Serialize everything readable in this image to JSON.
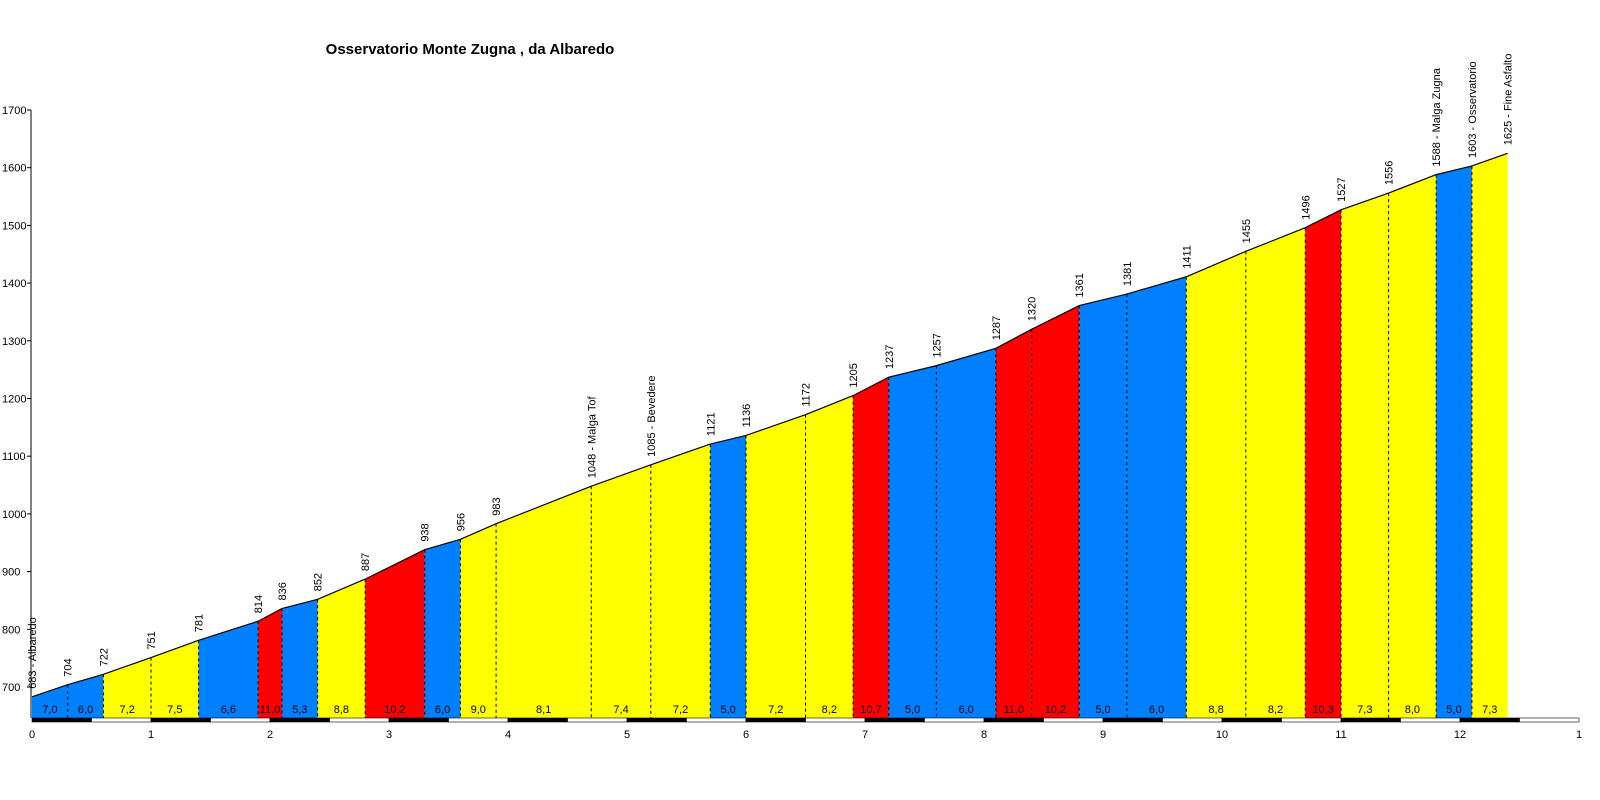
{
  "chart_data": {
    "type": "area",
    "title": "Osservatorio Monte Zugna , da Albaredo",
    "xlabel": "",
    "ylabel": "",
    "xlim": [
      0,
      13
    ],
    "ylim": [
      645,
      1700
    ],
    "x_ticks": [
      0,
      1,
      2,
      3,
      4,
      5,
      6,
      7,
      8,
      9,
      10,
      11,
      12,
      13
    ],
    "x_tick_labels": [
      "0",
      "1",
      "2",
      "3",
      "4",
      "5",
      "6",
      "7",
      "8",
      "9",
      "10",
      "11",
      "12",
      "1"
    ],
    "y_ticks": [
      700,
      800,
      900,
      1000,
      1100,
      1200,
      1300,
      1400,
      1500,
      1600,
      1700
    ],
    "grid": false,
    "colors": {
      "blue": "#0080ff",
      "yellow": "#ffff00",
      "red": "#ff0000",
      "outline": "#000000"
    },
    "points": [
      {
        "x": 0.0,
        "elev": 683,
        "label": "683 - Albaredo"
      },
      {
        "x": 0.3,
        "elev": 704,
        "label": "704"
      },
      {
        "x": 0.6,
        "elev": 722,
        "label": "722"
      },
      {
        "x": 1.0,
        "elev": 751,
        "label": "751"
      },
      {
        "x": 1.4,
        "elev": 781,
        "label": "781"
      },
      {
        "x": 1.9,
        "elev": 814,
        "label": "814"
      },
      {
        "x": 2.1,
        "elev": 836,
        "label": "836"
      },
      {
        "x": 2.4,
        "elev": 852,
        "label": "852"
      },
      {
        "x": 2.8,
        "elev": 887,
        "label": "887"
      },
      {
        "x": 3.3,
        "elev": 938,
        "label": "938"
      },
      {
        "x": 3.6,
        "elev": 956,
        "label": "956"
      },
      {
        "x": 3.9,
        "elev": 983,
        "label": "983"
      },
      {
        "x": 4.7,
        "elev": 1048,
        "label": "1048 - Malga Tof"
      },
      {
        "x": 5.2,
        "elev": 1085,
        "label": "1085 - Bevedere"
      },
      {
        "x": 5.7,
        "elev": 1121,
        "label": "1121"
      },
      {
        "x": 6.0,
        "elev": 1136,
        "label": "1136"
      },
      {
        "x": 6.5,
        "elev": 1172,
        "label": "1172"
      },
      {
        "x": 6.9,
        "elev": 1205,
        "label": "1205"
      },
      {
        "x": 7.2,
        "elev": 1237,
        "label": "1237"
      },
      {
        "x": 7.6,
        "elev": 1257,
        "label": "1257"
      },
      {
        "x": 8.1,
        "elev": 1287,
        "label": "1287"
      },
      {
        "x": 8.4,
        "elev": 1320,
        "label": "1320"
      },
      {
        "x": 8.8,
        "elev": 1361,
        "label": "1361"
      },
      {
        "x": 9.2,
        "elev": 1381,
        "label": "1381"
      },
      {
        "x": 9.7,
        "elev": 1411,
        "label": "1411"
      },
      {
        "x": 10.2,
        "elev": 1455,
        "label": "1455"
      },
      {
        "x": 10.7,
        "elev": 1496,
        "label": "1496"
      },
      {
        "x": 11.0,
        "elev": 1527,
        "label": "1527"
      },
      {
        "x": 11.4,
        "elev": 1556,
        "label": "1556"
      },
      {
        "x": 11.8,
        "elev": 1588,
        "label": "1588 - Malga Zugna"
      },
      {
        "x": 12.1,
        "elev": 1603,
        "label": "1603 - Osservatorio"
      },
      {
        "x": 12.4,
        "elev": 1625,
        "label": "1625 - Fine Asfalto"
      }
    ],
    "segments": [
      {
        "grade": "7,0",
        "color": "blue"
      },
      {
        "grade": "6,0",
        "color": "blue"
      },
      {
        "grade": "7,2",
        "color": "yellow"
      },
      {
        "grade": "7,5",
        "color": "yellow"
      },
      {
        "grade": "6,6",
        "color": "blue"
      },
      {
        "grade": "11,0",
        "color": "red"
      },
      {
        "grade": "5,3",
        "color": "blue"
      },
      {
        "grade": "8,8",
        "color": "yellow"
      },
      {
        "grade": "10,2",
        "color": "red"
      },
      {
        "grade": "6,0",
        "color": "blue"
      },
      {
        "grade": "9,0",
        "color": "yellow"
      },
      {
        "grade": "8,1",
        "color": "yellow"
      },
      {
        "grade": "7,4",
        "color": "yellow"
      },
      {
        "grade": "7,2",
        "color": "yellow"
      },
      {
        "grade": "5,0",
        "color": "blue"
      },
      {
        "grade": "7,2",
        "color": "yellow"
      },
      {
        "grade": "8,2",
        "color": "yellow"
      },
      {
        "grade": "10,7",
        "color": "red"
      },
      {
        "grade": "5,0",
        "color": "blue"
      },
      {
        "grade": "6,0",
        "color": "blue"
      },
      {
        "grade": "11,0",
        "color": "red"
      },
      {
        "grade": "10,2",
        "color": "red"
      },
      {
        "grade": "5,0",
        "color": "blue"
      },
      {
        "grade": "6,0",
        "color": "blue"
      },
      {
        "grade": "8,8",
        "color": "yellow"
      },
      {
        "grade": "8,2",
        "color": "yellow"
      },
      {
        "grade": "10,3",
        "color": "red"
      },
      {
        "grade": "7,3",
        "color": "yellow"
      },
      {
        "grade": "8,0",
        "color": "yellow"
      },
      {
        "grade": "5,0",
        "color": "blue"
      },
      {
        "grade": "7,3",
        "color": "yellow"
      }
    ]
  }
}
